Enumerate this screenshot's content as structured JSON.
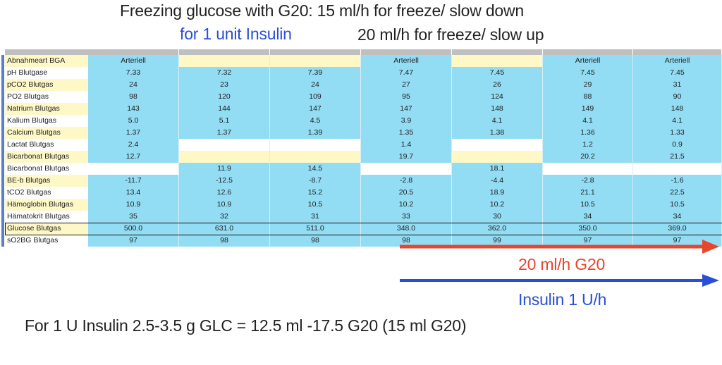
{
  "title_line1": "Freezing glucose with G20: 15 ml/h for freeze/ slow down",
  "title_line2_left": "for 1 unit Insulin",
  "title_line2_right": "20 ml/h for freeze/ slow up",
  "table": {
    "rows": [
      {
        "label": "Abnahmeart BGA",
        "values": [
          "Arteriell",
          "",
          "",
          "Arteriell",
          "",
          "Arteriell",
          "Arteriell"
        ]
      },
      {
        "label": "pH Blutgase",
        "values": [
          "7.33",
          "7.32",
          "7.39",
          "7.47",
          "7.45",
          "7.45",
          "7.45"
        ]
      },
      {
        "label": "pCO2 Blutgas",
        "values": [
          "24",
          "23",
          "24",
          "27",
          "26",
          "29",
          "31"
        ]
      },
      {
        "label": "PO2 Blutgas",
        "values": [
          "98",
          "120",
          "109",
          "95",
          "124",
          "88",
          "90"
        ]
      },
      {
        "label": "Natrium Blutgas",
        "values": [
          "143",
          "144",
          "147",
          "147",
          "148",
          "149",
          "148"
        ]
      },
      {
        "label": "Kalium Blutgas",
        "values": [
          "5.0",
          "5.1",
          "4.5",
          "3.9",
          "4.1",
          "4.1",
          "4.1"
        ]
      },
      {
        "label": "Calcium Blutgas",
        "values": [
          "1.37",
          "1.37",
          "1.39",
          "1.35",
          "1.38",
          "1.36",
          "1.33"
        ]
      },
      {
        "label": "Lactat Blutgas",
        "values": [
          "2.4",
          "",
          "",
          "1.4",
          "",
          "1.2",
          "0.9"
        ]
      },
      {
        "label": "Bicarbonat Blutgas",
        "values": [
          "12.7",
          "",
          "",
          "19.7",
          "",
          "20.2",
          "21.5"
        ]
      },
      {
        "label": "Bicarbonat Blutgas",
        "values": [
          "",
          "11.9",
          "14.5",
          "",
          "18.1",
          "",
          ""
        ]
      },
      {
        "label": "BE-b Blutgas",
        "values": [
          "-11.7",
          "-12.5",
          "-8.7",
          "-2.8",
          "-4.4",
          "-2.8",
          "-1.6"
        ]
      },
      {
        "label": "tCO2 Blutgas",
        "values": [
          "13.4",
          "12.6",
          "15.2",
          "20.5",
          "18.9",
          "21.1",
          "22.5"
        ]
      },
      {
        "label": "Hämoglobin Blutgas",
        "values": [
          "10.9",
          "10.9",
          "10.5",
          "10.2",
          "10.2",
          "10.5",
          "10.5"
        ]
      },
      {
        "label": "Hämatokrit Blutgas",
        "values": [
          "35",
          "32",
          "31",
          "33",
          "30",
          "34",
          "34"
        ]
      },
      {
        "label": "Glucose Blutgas",
        "values": [
          "500.0",
          "631.0",
          "511.0",
          "348.0",
          "362.0",
          "350.0",
          "369.0"
        ]
      },
      {
        "label": "sO2BG Blutgas",
        "values": [
          "97",
          "98",
          "98",
          "98",
          "99",
          "97",
          "97"
        ]
      }
    ]
  },
  "arrow_red_label": "20 ml/h G20",
  "arrow_blue_label": "Insulin 1 U/h",
  "footer": "For 1 U Insulin 2.5-3.5 g GLC = 12.5 ml -17.5 G20 (15 ml G20)",
  "colors": {
    "red": "#e8452a",
    "blue": "#2a4fd6",
    "cell_blue": "#92dcf4",
    "cell_yellow": "#fdf8c6"
  }
}
